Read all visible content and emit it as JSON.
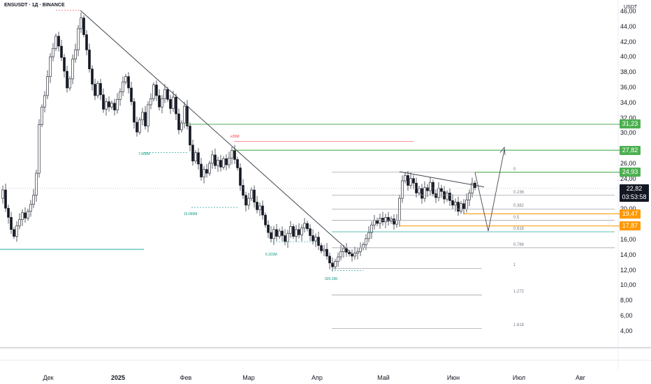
{
  "header": {
    "title": "ENSUSDT · 1Д · BINANCE",
    "currency": "USDT"
  },
  "chart_data": {
    "type": "candlestick",
    "title": "ENSUSDT · 1Д · BINANCE",
    "ylabel": "USDT",
    "ylim": [
      3,
      48
    ],
    "y_ticks": [
      "46,00",
      "44,00",
      "42,00",
      "40,00",
      "38,00",
      "36,00",
      "34,00",
      "32,00",
      "30,00",
      "26,00",
      "24,00",
      "20,00",
      "16,00",
      "14,00",
      "12,00",
      "10,00",
      "8,00",
      "6,00",
      "4,00"
    ],
    "x_ticks": [
      {
        "label": "Дек",
        "bold": false
      },
      {
        "label": "2025",
        "bold": true
      },
      {
        "label": "Фев",
        "bold": false
      },
      {
        "label": "Мар",
        "bold": false
      },
      {
        "label": "Апр",
        "bold": false
      },
      {
        "label": "Май",
        "bold": false
      },
      {
        "label": "Июн",
        "bold": false
      },
      {
        "label": "Июл",
        "bold": false
      },
      {
        "label": "Авг",
        "bold": false
      }
    ],
    "price_levels": [
      {
        "value": 31.23,
        "label": "31,23",
        "color": "#4caf50"
      },
      {
        "value": 27.82,
        "label": "27,82",
        "color": "#4caf50"
      },
      {
        "value": 24.93,
        "label": "24,93",
        "color": "#4caf50"
      },
      {
        "value": 19.47,
        "label": "19,47",
        "color": "#ff9800"
      },
      {
        "value": 17.87,
        "label": "17,87",
        "color": "#ff9800"
      }
    ],
    "current_price": {
      "value": 22.82,
      "label": "22,82",
      "countdown": "03:53:58",
      "color": "#131722"
    },
    "fibonacci": [
      {
        "ratio": "0",
        "value": 24.93
      },
      {
        "ratio": "0.236",
        "value": 21.9
      },
      {
        "ratio": "0.382",
        "value": 20.1
      },
      {
        "ratio": "0.5",
        "value": 18.6
      },
      {
        "ratio": "0.618",
        "value": 17.1
      },
      {
        "ratio": "0.786",
        "value": 15.0
      },
      {
        "ratio": "1",
        "value": 12.3
      },
      {
        "ratio": "1.272",
        "value": 8.8
      },
      {
        "ratio": "1.618",
        "value": 4.4
      }
    ],
    "volume_labels": [
      "7.668M",
      "15.065M",
      "6.323M",
      "925.29K"
    ],
    "sell_label": "e35M",
    "colors": {
      "up": "#ffffff",
      "down": "#131722",
      "trendline": "#434651",
      "level_green": "#4caf50",
      "level_orange": "#ff9800",
      "ma_line": "#26a69a"
    }
  }
}
